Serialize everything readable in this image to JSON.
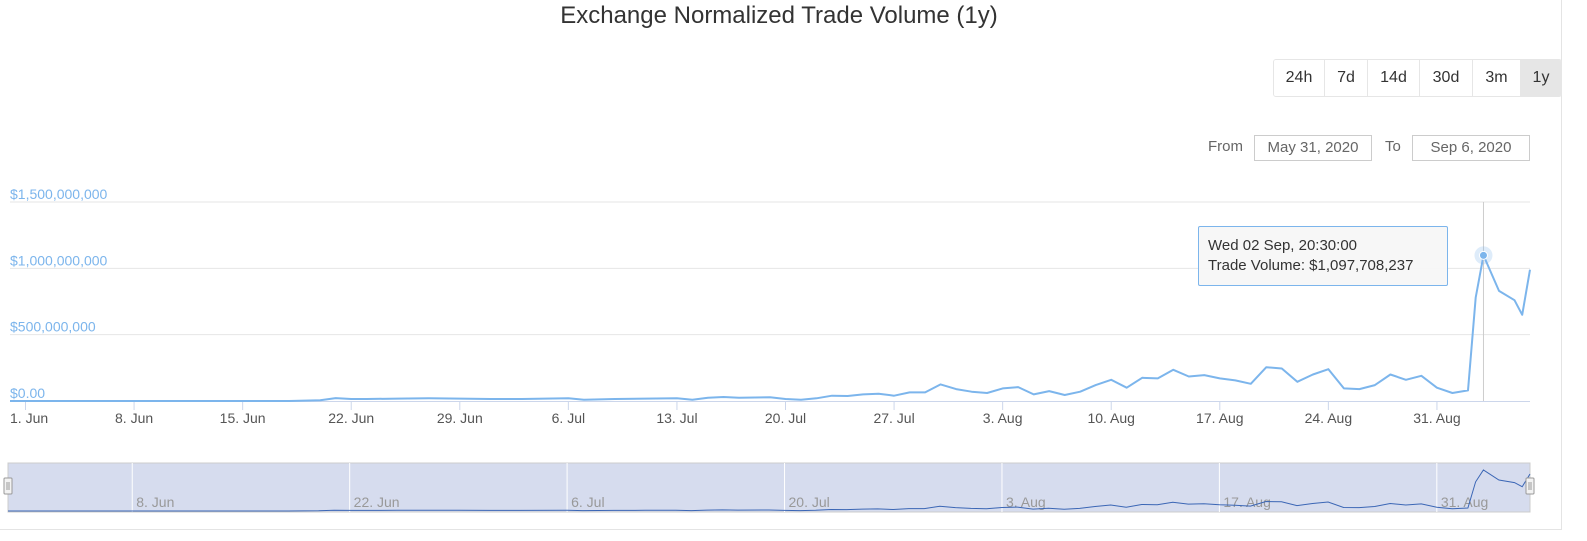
{
  "title": "Exchange Normalized Trade Volume (1y)",
  "range_selector": {
    "buttons": [
      "24h",
      "7d",
      "14d",
      "30d",
      "3m",
      "1y"
    ],
    "active": "1y"
  },
  "date_range": {
    "from_label": "From",
    "from_value": "May 31, 2020",
    "to_label": "To",
    "to_value": "Sep 6, 2020"
  },
  "tooltip": {
    "date": "Wed 02 Sep, 20:30:00",
    "series_label": "Trade Volume",
    "value": "$1,097,708,237"
  },
  "colors": {
    "series": "#7cb5ec",
    "navigator_fill": "#d6dcee",
    "navigator_line": "#3b66b5",
    "grid": "#e6e6e6"
  },
  "chart_data": {
    "type": "line",
    "x_start": "2020-05-31",
    "x_end": "2020-09-06",
    "y_tick_labels": [
      "$0.00",
      "$500,000,000",
      "$1,000,000,000",
      "$1,500,000,000"
    ],
    "x_tick_labels": [
      "1. Jun",
      "8. Jun",
      "15. Jun",
      "22. Jun",
      "29. Jun",
      "6. Jul",
      "13. Jul",
      "20. Jul",
      "27. Jul",
      "3. Aug",
      "10. Aug",
      "17. Aug",
      "24. Aug",
      "31. Aug"
    ],
    "navigator_labels": [
      "8. Jun",
      "22. Jun",
      "6. Jul",
      "20. Jul",
      "3. Aug",
      "17. Aug",
      "31. Aug"
    ],
    "ylim": [
      0,
      1500000000
    ],
    "grid": true,
    "series": [
      {
        "name": "Trade Volume",
        "points": [
          [
            "2020-05-31",
            0
          ],
          [
            "2020-06-03",
            0
          ],
          [
            "2020-06-07",
            0
          ],
          [
            "2020-06-11",
            0
          ],
          [
            "2020-06-15",
            0
          ],
          [
            "2020-06-18",
            0
          ],
          [
            "2020-06-20",
            5000000
          ],
          [
            "2020-06-21",
            22000000
          ],
          [
            "2020-06-22",
            15000000
          ],
          [
            "2020-06-23",
            15000000
          ],
          [
            "2020-06-25",
            18000000
          ],
          [
            "2020-06-27",
            20000000
          ],
          [
            "2020-06-29",
            18000000
          ],
          [
            "2020-07-01",
            15000000
          ],
          [
            "2020-07-03",
            15000000
          ],
          [
            "2020-07-06",
            20000000
          ],
          [
            "2020-07-07",
            10000000
          ],
          [
            "2020-07-09",
            15000000
          ],
          [
            "2020-07-11",
            18000000
          ],
          [
            "2020-07-13",
            20000000
          ],
          [
            "2020-07-14",
            10000000
          ],
          [
            "2020-07-15",
            25000000
          ],
          [
            "2020-07-16",
            30000000
          ],
          [
            "2020-07-17",
            25000000
          ],
          [
            "2020-07-19",
            28000000
          ],
          [
            "2020-07-20",
            15000000
          ],
          [
            "2020-07-21",
            10000000
          ],
          [
            "2020-07-22",
            20000000
          ],
          [
            "2020-07-23",
            40000000
          ],
          [
            "2020-07-24",
            38000000
          ],
          [
            "2020-07-25",
            50000000
          ],
          [
            "2020-07-26",
            55000000
          ],
          [
            "2020-07-27",
            40000000
          ],
          [
            "2020-07-28",
            65000000
          ],
          [
            "2020-07-29",
            65000000
          ],
          [
            "2020-07-30",
            125000000
          ],
          [
            "2020-07-31",
            90000000
          ],
          [
            "2020-08-01",
            70000000
          ],
          [
            "2020-08-02",
            60000000
          ],
          [
            "2020-08-03",
            95000000
          ],
          [
            "2020-08-04",
            105000000
          ],
          [
            "2020-08-05",
            50000000
          ],
          [
            "2020-08-06",
            75000000
          ],
          [
            "2020-08-07",
            45000000
          ],
          [
            "2020-08-08",
            70000000
          ],
          [
            "2020-08-09",
            120000000
          ],
          [
            "2020-08-10",
            160000000
          ],
          [
            "2020-08-11",
            100000000
          ],
          [
            "2020-08-12",
            175000000
          ],
          [
            "2020-08-13",
            170000000
          ],
          [
            "2020-08-14",
            235000000
          ],
          [
            "2020-08-15",
            185000000
          ],
          [
            "2020-08-16",
            195000000
          ],
          [
            "2020-08-17",
            170000000
          ],
          [
            "2020-08-18",
            155000000
          ],
          [
            "2020-08-19",
            130000000
          ],
          [
            "2020-08-20",
            255000000
          ],
          [
            "2020-08-21",
            245000000
          ],
          [
            "2020-08-22",
            145000000
          ],
          [
            "2020-08-23",
            200000000
          ],
          [
            "2020-08-24",
            240000000
          ],
          [
            "2020-08-25",
            95000000
          ],
          [
            "2020-08-26",
            90000000
          ],
          [
            "2020-08-27",
            120000000
          ],
          [
            "2020-08-28",
            200000000
          ],
          [
            "2020-08-29",
            160000000
          ],
          [
            "2020-08-30",
            190000000
          ],
          [
            "2020-08-31",
            100000000
          ],
          [
            "2020-09-01",
            60000000
          ],
          [
            "2020-09-02",
            80000000
          ],
          [
            "2020-09-02",
            780000000
          ],
          [
            "2020-09-03",
            1097708237
          ],
          [
            "2020-09-04",
            830000000
          ],
          [
            "2020-09-05",
            760000000
          ],
          [
            "2020-09-05",
            650000000
          ],
          [
            "2020-09-06",
            990000000
          ]
        ]
      }
    ],
    "highlighted_point": [
      "2020-09-03",
      1097708237
    ]
  }
}
